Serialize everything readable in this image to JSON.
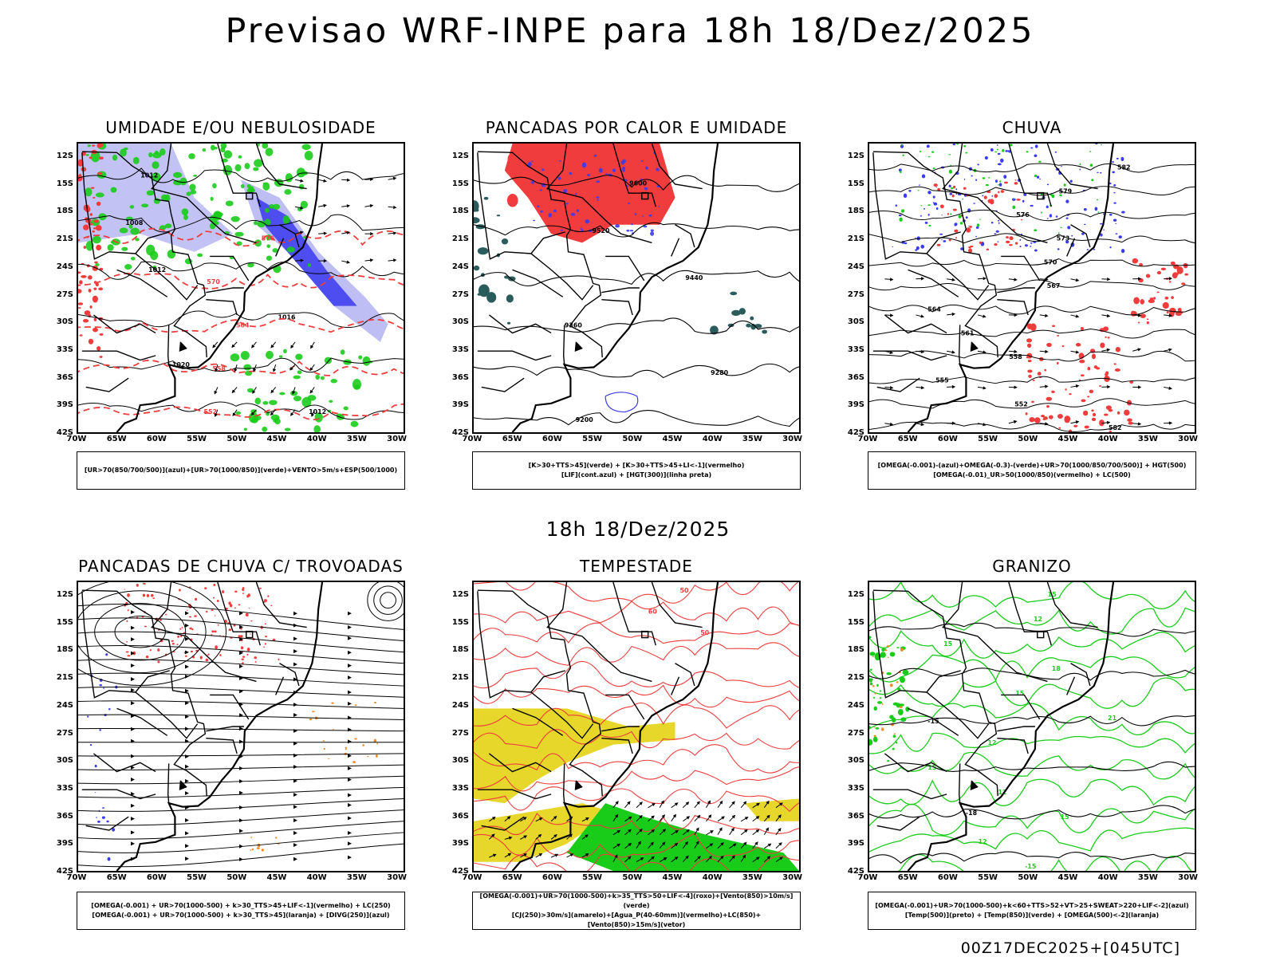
{
  "title": "Previsao WRF-INPE  para 18h 18/Dez/2025",
  "subtitle": "18h 18/Dez/2025",
  "footer": "00Z17DEC2025+[045UTC]",
  "axes": {
    "lat_labels": [
      "12S",
      "15S",
      "18S",
      "21S",
      "24S",
      "27S",
      "30S",
      "33S",
      "36S",
      "39S",
      "42S"
    ],
    "lon_labels": [
      "70W",
      "65W",
      "60W",
      "55W",
      "50W",
      "45W",
      "40W",
      "35W",
      "30W"
    ]
  },
  "colors": {
    "blue": "#3a3aee",
    "lightblue": "#b3b3f2",
    "green": "#19cc19",
    "red": "#f03c3c",
    "darkteal": "#2a5c5c",
    "yellow": "#e6d72a",
    "orange": "#f08c28",
    "black": "#000000"
  },
  "chart_data": [
    {
      "type": "map",
      "title": "UMIDADE E/OU NEBULOSIDADE",
      "legend": [
        "[UR>70(850/700/500)](azul)+[UR>70(1000/850)](verde)+VENTO>5m/s+ESP(500/1000)"
      ],
      "lat_range": [
        -42,
        -10
      ],
      "lon_range": [
        -70,
        -28
      ],
      "contour_labels": [
        "1012",
        "1004",
        "1008",
        "1012",
        "1008",
        "1012",
        "1016",
        "1020",
        "1008",
        "1012",
        "1008",
        "1012",
        "1016",
        "1008",
        "576",
        "570",
        "576",
        "570",
        "564",
        "558",
        "552",
        "546",
        "564",
        "570",
        "576"
      ]
    },
    {
      "type": "map",
      "title": "PANCADAS POR CALOR E UMIDADE",
      "legend": [
        "[K>30+TTS>45](verde) + [K>30+TTS>45+LI<-1](vermelho)",
        "[LIF](cont.azul) + [HGT(300)](linha preta)"
      ],
      "lat_range": [
        -42,
        -10
      ],
      "lon_range": [
        -70,
        -28
      ],
      "contour_labels": [
        "9600",
        "9600",
        "9520",
        "9600",
        "9600",
        "9600",
        "9520",
        "9520",
        "9440",
        "9440",
        "9360",
        "9360",
        "9280",
        "9280",
        "9200"
      ]
    },
    {
      "type": "map",
      "title": "CHUVA",
      "legend": [
        "[OMEGA(-0.001)-(azul)+OMEGA(-0.3)-(verde)+UR>70(1000/850/700/500)] + HGT(500)",
        "[OMEGA(-0.01)_UR>50(1000/850)(vermelho) + LC(500)"
      ],
      "lat_range": [
        -42,
        -10
      ],
      "lon_range": [
        -70,
        -28
      ],
      "contour_labels": [
        "582",
        "582",
        "579",
        "576",
        "573",
        "570",
        "567",
        "564",
        "561",
        "558",
        "555",
        "552"
      ]
    },
    {
      "type": "map",
      "title": "PANCADAS DE CHUVA C/ TROVOADAS",
      "legend": [
        "[OMEGA(-0.001) + UR>70(1000-500) + k>30_TTS>45+LIF<-1](vermelho) + LC(250)",
        "[OMEGA(-0.001) + UR>70(1000-500) + k>30_TTS>45](laranja) + [DIVG(250)](azul)"
      ],
      "lat_range": [
        -42,
        -10
      ],
      "lon_range": [
        -70,
        -28
      ],
      "contour_labels": []
    },
    {
      "type": "map",
      "title": "TEMPESTADE",
      "legend": [
        "[OMEGA(-0.001)+UR>70(1000-500)+k>35_TTS>50+LIF<-4](roxo)+[Vento(850)>10m/s](verde)",
        "[CJ(250)>30m/s](amarelo)+[Agua_P(40-60mm)](vermelho)+LC(850)+[Vento(850)>15m/s](vetor)"
      ],
      "lat_range": [
        -42,
        -10
      ],
      "lon_range": [
        -70,
        -28
      ],
      "contour_labels": [
        "50",
        "60",
        "50"
      ]
    },
    {
      "type": "map",
      "title": "GRANIZO",
      "legend": [
        "[OMEGA(-0.001)+UR>70(1000-500)+k<60+TTS>52+VT>25+SWEAT>220+LIF<-2](azul)",
        "[Temp(500)](preto) + [Temp(850)](verde) + [OMEGA(500)<-2](laranja)"
      ],
      "lat_range": [
        -42,
        -10
      ],
      "lon_range": [
        -70,
        -28
      ],
      "contour_labels": [
        "15",
        "12",
        "15",
        "18",
        "15",
        "21",
        "-15",
        "-18",
        "12",
        "15",
        "12"
      ]
    }
  ]
}
